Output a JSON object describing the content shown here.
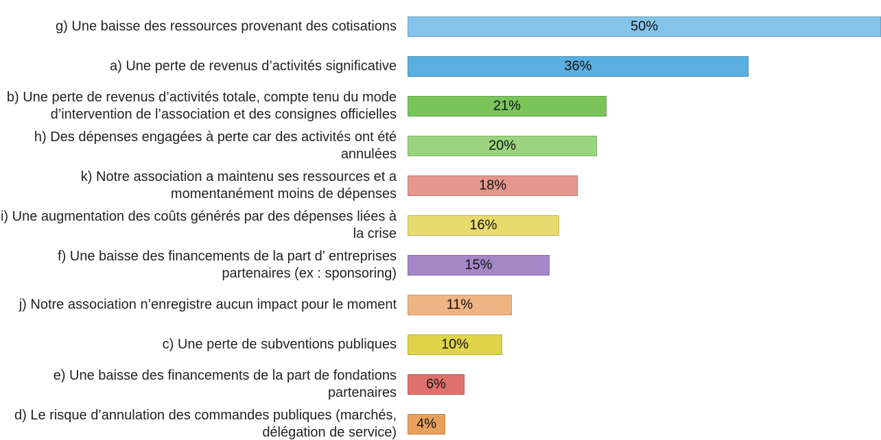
{
  "chart_data": {
    "type": "barh",
    "categories": [
      "g) Une baisse des ressources provenant des cotisations",
      "a) Une perte de revenus d’activités significative",
      "b) Une perte de revenus d’activités totale, compte tenu du mode d’intervention de l’association et des consignes officielles",
      "h) Des dépenses engagées à perte car des activités ont été annulées",
      "k) Notre association a maintenu ses ressources et a momentanément moins de dépenses",
      "i) Une augmentation des coûts générés par des dépenses liées à la crise",
      "f) Une baisse des financements de la part d’ entreprises partenaires (ex : sponsoring)",
      "j) Notre association n’enregistre aucun impact pour le moment",
      "c) Une perte de subventions publiques",
      "e) Une baisse des financements de la part de fondations partenaires",
      "d) Le risque d’annulation des commandes publiques (marchés, délégation de service)"
    ],
    "values": [
      50,
      36,
      21,
      20,
      18,
      16,
      15,
      11,
      10,
      6,
      4
    ],
    "value_labels": [
      "50%",
      "36%",
      "21%",
      "20%",
      "18%",
      "16%",
      "15%",
      "11%",
      "10%",
      "6%",
      "4%"
    ],
    "colors": [
      "#85c4ea",
      "#5aafe0",
      "#7ac55a",
      "#9ad47e",
      "#e4968f",
      "#e8db6e",
      "#a786c8",
      "#efb483",
      "#e0d54a",
      "#e0706b",
      "#e8a15a"
    ],
    "xlim": [
      0,
      50
    ]
  }
}
